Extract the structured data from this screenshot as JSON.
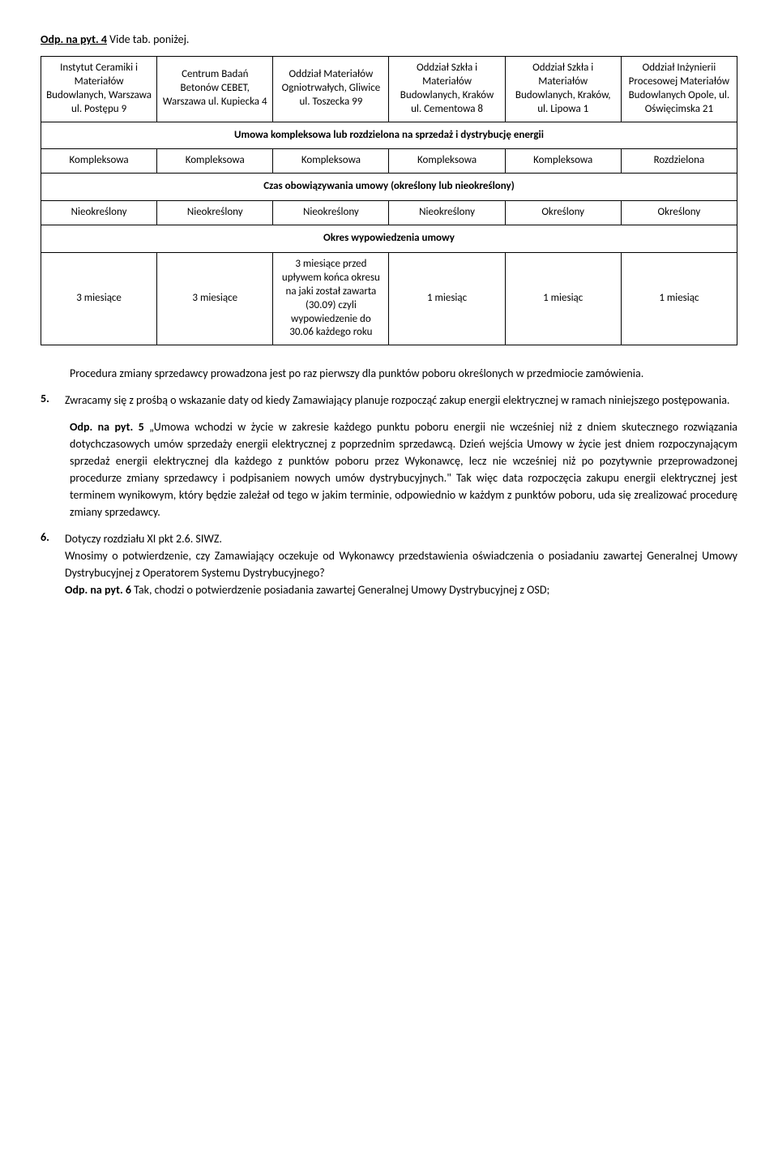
{
  "heading": {
    "label": "Odp. na pyt. 4",
    "rest": "Vide tab. poniżej."
  },
  "table1": {
    "headers": [
      "Instytut Ceramiki i Materiałów Budowlanych, Warszawa ul. Postępu 9",
      "Centrum Badań Betonów CEBET, Warszawa ul. Kupiecka 4",
      "Oddział Materiałów Ogniotrwałych, Gliwice ul. Toszecka 99",
      "Oddział Szkła i Materiałów Budowlanych, Kraków ul. Cementowa 8",
      "Oddział Szkła i Materiałów Budowlanych, Kraków, ul. Lipowa 1",
      "Oddział Inżynierii Procesowej Materiałów Budowlanych Opole, ul. Oświęcimska 21"
    ],
    "section1": "Umowa kompleksowa lub rozdzielona na sprzedaż i dystrybucję energii",
    "row1": [
      "Kompleksowa",
      "Kompleksowa",
      "Kompleksowa",
      "Kompleksowa",
      "Kompleksowa",
      "Rozdzielona"
    ],
    "section2": "Czas obowiązywania umowy (określony lub nieokreślony)",
    "row2": [
      "Nieokreślony",
      "Nieokreślony",
      "Nieokreślony",
      "Nieokreślony",
      "Określony",
      "Określony"
    ],
    "section3": "Okres wypowiedzenia umowy",
    "row3": [
      "3 miesiące",
      "3 miesiące",
      "3 miesiące przed upływem końca okresu na jaki został zawarta (30.09) czyli wypowiedzenie do 30.06 każdego  roku",
      "1 miesiąc",
      "1 miesiąc",
      "1 miesiąc"
    ]
  },
  "para_procedura": "Procedura zmiany sprzedawcy prowadzona jest po raz pierwszy dla punktów poboru określonych w przedmiocie zamówienia.",
  "q5": {
    "num": "5.",
    "text": "Zwracamy się z prośbą o wskazanie daty od kiedy Zamawiający planuje rozpocząć zakup energii elektrycznej w ramach niniejszego postępowania."
  },
  "ans5": {
    "label": "Odp. na pyt. 5",
    "text": " „Umowa wchodzi w życie w zakresie każdego punktu poboru energii nie wcześniej niż z dniem skutecznego rozwiązania dotychczasowych umów sprzedaży energii elektrycznej z poprzednim sprzedawcą. Dzień wejścia Umowy w życie jest dniem rozpoczynającym sprzedaż energii elektrycznej dla każdego z punktów poboru przez Wykonawcę, lecz nie wcześniej niż po pozytywnie przeprowadzonej procedurze zmiany sprzedawcy i podpisaniem nowych umów dystrybucyjnych.\" Tak więc  data rozpoczęcia zakupu energii elektrycznej jest terminem wynikowym, który będzie zależał od tego w jakim terminie, odpowiednio w każdym z punktów poboru, uda się zrealizować procedurę zmiany sprzedawcy."
  },
  "q6": {
    "num": "6.",
    "line1": "Dotyczy rozdziału XI pkt 2.6. SIWZ.",
    "line2": "Wnosimy o potwierdzenie, czy Zamawiający oczekuje od Wykonawcy przedstawienia oświadczenia o posiadaniu zawartej Generalnej Umowy Dystrybucyjnej z Operatorem Systemu Dystrybucyjnego?",
    "ans_label": "Odp. na pyt. 6",
    "ans_text": " Tak, chodzi o potwierdzenie posiadania zawartej Generalnej Umowy Dystrybucyjnej z OSD;"
  }
}
